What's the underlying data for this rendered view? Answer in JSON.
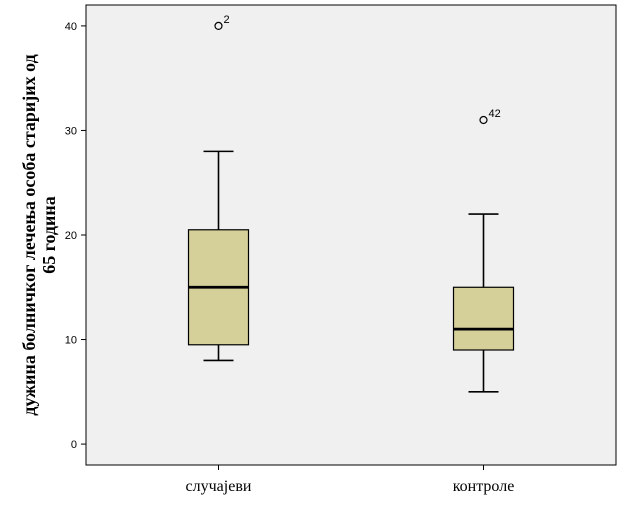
{
  "chart_data": {
    "type": "boxplot",
    "title": "",
    "xlabel": "",
    "ylabel_line1": "дужина болничког лечења особа старијих од",
    "ylabel_line2": "65 година",
    "ylim": [
      -2,
      42
    ],
    "yticks": [
      0,
      10,
      20,
      30,
      40
    ],
    "grid": false,
    "categories": [
      "случајеви",
      "контроле"
    ],
    "boxes": [
      {
        "category": "случајеви",
        "whisker_low": 8,
        "q1": 9.5,
        "median": 15,
        "q3": 20.5,
        "whisker_high": 28,
        "outliers": [
          {
            "value": 40,
            "label": "2"
          }
        ]
      },
      {
        "category": "контроле",
        "whisker_low": 5,
        "q1": 9,
        "median": 11,
        "q3": 15,
        "whisker_high": 22,
        "outliers": [
          {
            "value": 31,
            "label": "42"
          }
        ]
      }
    ],
    "colors": {
      "plot_background": "#f0f0f0",
      "box_fill": "#d5cf99",
      "stroke": "#000000"
    }
  }
}
